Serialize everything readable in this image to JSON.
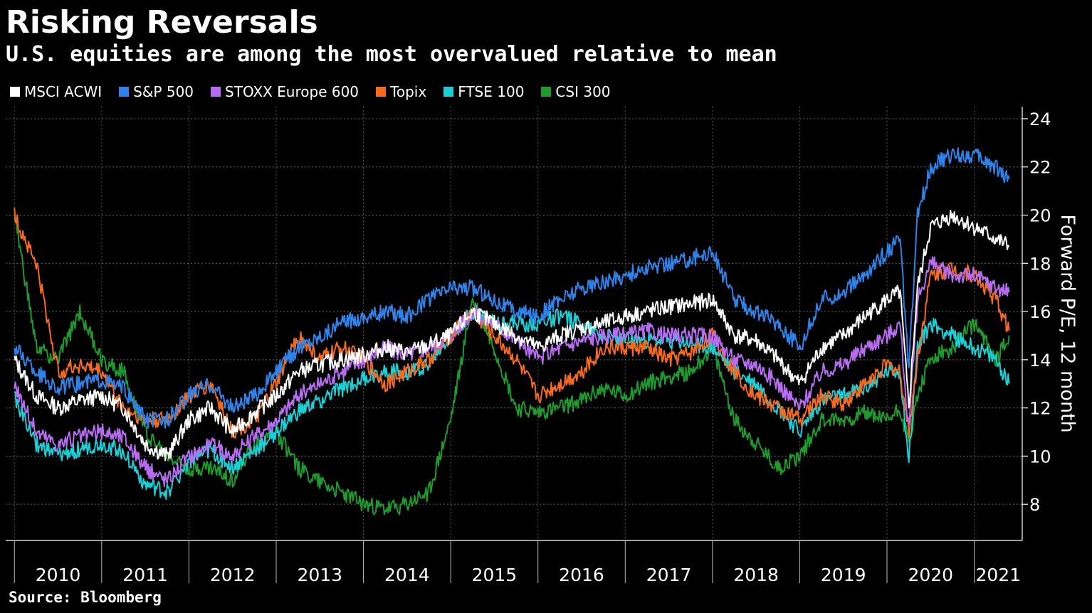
{
  "title": "Risking Reversals",
  "subtitle": "U.S. equities are among the most overvalued relative to mean",
  "source": "Source: Bloomberg",
  "chart_data": {
    "type": "line",
    "ylabel": "Forward P/E, 12 month",
    "ylim": [
      6.5,
      24.5
    ],
    "yticks": [
      8,
      10,
      12,
      14,
      16,
      18,
      20,
      22,
      24
    ],
    "xlim": [
      2009.9,
      2021.55
    ],
    "x_year_labels": [
      "2010",
      "2011",
      "2012",
      "2013",
      "2014",
      "2015",
      "2016",
      "2017",
      "2018",
      "2019",
      "2020",
      "2021"
    ],
    "grid": true,
    "legend_position": "top-left",
    "x": [
      2010.0,
      2010.25,
      2010.5,
      2010.75,
      2011.0,
      2011.25,
      2011.5,
      2011.75,
      2012.0,
      2012.25,
      2012.5,
      2012.75,
      2013.0,
      2013.25,
      2013.5,
      2013.75,
      2014.0,
      2014.25,
      2014.5,
      2014.75,
      2015.0,
      2015.25,
      2015.5,
      2015.75,
      2016.0,
      2016.25,
      2016.5,
      2016.75,
      2017.0,
      2017.25,
      2017.5,
      2017.75,
      2018.0,
      2018.25,
      2018.5,
      2018.75,
      2019.0,
      2019.25,
      2019.5,
      2019.75,
      2020.0,
      2020.15,
      2020.25,
      2020.35,
      2020.5,
      2020.75,
      2021.0,
      2021.25,
      2021.4
    ],
    "series": [
      {
        "name": "MSCI ACWI",
        "color": "#ffffff",
        "values": [
          14.0,
          12.5,
          12.0,
          12.3,
          12.5,
          12.0,
          10.5,
          10.0,
          11.5,
          12.0,
          11.0,
          11.8,
          12.5,
          13.5,
          13.8,
          14.0,
          14.2,
          14.5,
          14.3,
          14.6,
          15.0,
          16.0,
          15.5,
          15.0,
          14.5,
          15.0,
          15.3,
          15.5,
          15.8,
          16.0,
          16.2,
          16.3,
          16.5,
          15.0,
          14.8,
          14.0,
          13.0,
          14.5,
          15.0,
          15.8,
          16.5,
          16.8,
          12.0,
          17.0,
          19.5,
          20.0,
          19.5,
          19.0,
          18.7
        ]
      },
      {
        "name": "S&P 500",
        "color": "#2f82e8",
        "values": [
          14.5,
          13.5,
          12.8,
          13.0,
          13.2,
          12.8,
          11.5,
          11.5,
          12.5,
          13.0,
          12.0,
          12.5,
          13.5,
          14.5,
          15.0,
          15.5,
          15.8,
          16.0,
          15.8,
          16.5,
          17.0,
          17.0,
          16.5,
          16.0,
          15.8,
          16.5,
          17.0,
          17.2,
          17.5,
          17.8,
          18.0,
          18.2,
          18.5,
          16.5,
          16.0,
          15.5,
          14.5,
          16.5,
          16.8,
          17.5,
          18.5,
          19.0,
          13.5,
          20.0,
          22.0,
          22.5,
          22.5,
          22.0,
          21.5
        ]
      },
      {
        "name": "STOXX Europe 600",
        "color": "#b86cf2",
        "values": [
          13.0,
          11.0,
          10.5,
          10.8,
          11.0,
          10.8,
          9.5,
          9.0,
          10.0,
          10.5,
          10.0,
          10.8,
          11.5,
          12.5,
          13.0,
          13.5,
          14.0,
          14.5,
          14.2,
          14.5,
          15.0,
          16.0,
          15.5,
          14.8,
          14.0,
          14.5,
          14.8,
          15.0,
          15.0,
          15.2,
          15.0,
          15.0,
          15.0,
          14.0,
          13.8,
          13.0,
          12.0,
          13.5,
          13.8,
          14.5,
          15.0,
          15.5,
          11.0,
          16.5,
          18.0,
          17.5,
          17.5,
          17.0,
          16.8
        ]
      },
      {
        "name": "Topix",
        "color": "#f56a1e",
        "values": [
          20.0,
          18.0,
          13.5,
          13.8,
          13.5,
          12.0,
          11.5,
          11.5,
          12.5,
          13.0,
          11.0,
          11.5,
          13.0,
          15.0,
          14.0,
          14.5,
          14.0,
          13.0,
          13.5,
          14.0,
          15.0,
          16.0,
          15.0,
          14.0,
          12.5,
          13.0,
          13.5,
          14.5,
          14.5,
          14.5,
          14.0,
          14.3,
          15.0,
          13.5,
          12.5,
          12.0,
          11.5,
          12.5,
          12.2,
          13.0,
          13.8,
          13.5,
          11.0,
          14.0,
          17.5,
          17.8,
          17.5,
          16.5,
          15.2
        ]
      },
      {
        "name": "FTSE 100",
        "color": "#1ccfd6",
        "values": [
          12.5,
          10.5,
          10.0,
          10.3,
          10.5,
          10.2,
          8.8,
          8.5,
          9.8,
          10.2,
          9.5,
          10.2,
          11.0,
          11.8,
          12.3,
          12.8,
          13.2,
          13.5,
          13.5,
          13.8,
          15.0,
          16.0,
          15.5,
          15.5,
          15.5,
          15.8,
          15.5,
          15.0,
          14.8,
          14.8,
          14.8,
          14.7,
          14.5,
          13.5,
          13.0,
          12.0,
          11.0,
          12.3,
          12.5,
          12.8,
          13.5,
          13.5,
          9.8,
          14.5,
          15.5,
          15.0,
          14.5,
          14.0,
          13.0
        ]
      },
      {
        "name": "CSI 300",
        "color": "#1e9a2e",
        "values": [
          20.0,
          14.5,
          14.0,
          16.0,
          14.0,
          13.5,
          11.0,
          10.0,
          9.5,
          9.5,
          9.0,
          10.5,
          11.0,
          9.5,
          9.0,
          8.5,
          8.0,
          7.8,
          8.0,
          8.5,
          11.5,
          16.5,
          14.5,
          12.0,
          11.8,
          12.0,
          12.3,
          12.8,
          12.5,
          13.0,
          13.3,
          13.5,
          14.5,
          11.5,
          10.5,
          9.5,
          10.0,
          11.5,
          11.5,
          11.8,
          11.5,
          12.0,
          10.5,
          12.5,
          14.0,
          14.5,
          15.5,
          14.0,
          15.0
        ]
      }
    ]
  }
}
